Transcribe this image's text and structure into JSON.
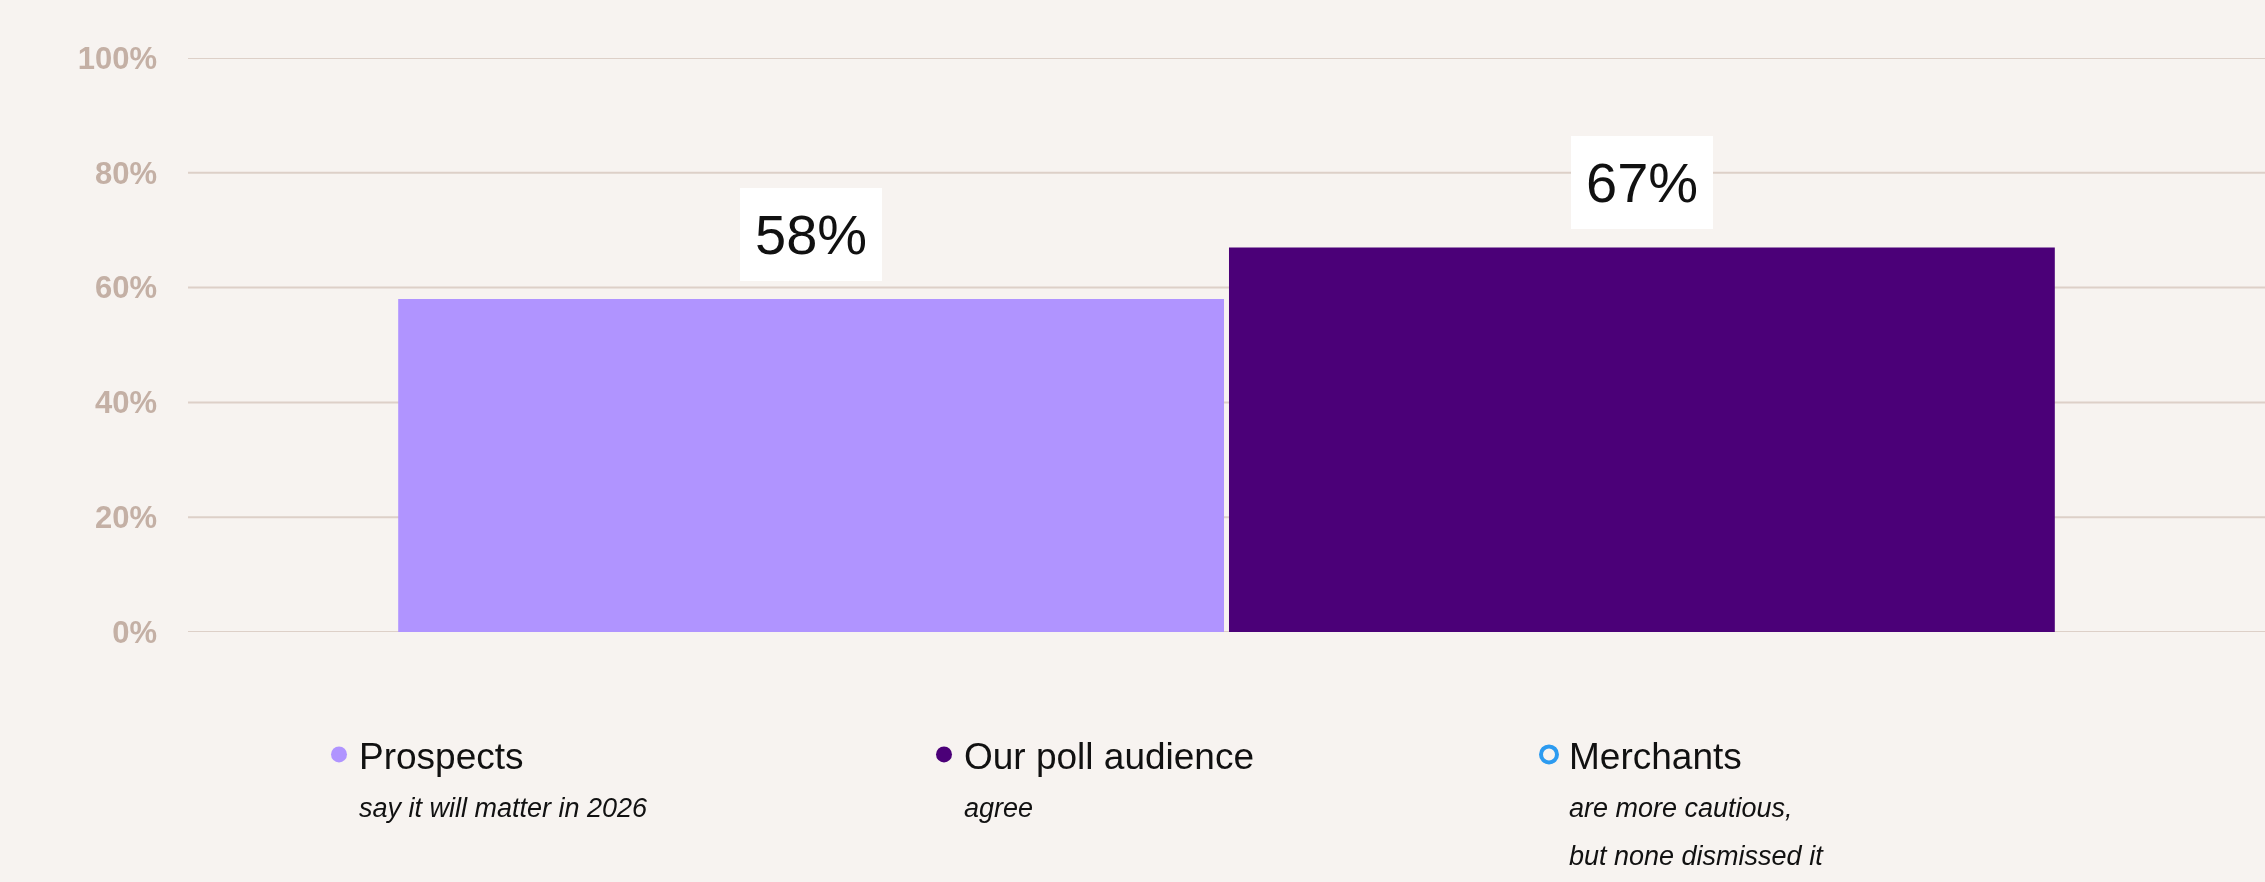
{
  "chart_data": {
    "type": "bar",
    "categories": [
      null
    ],
    "series": [
      {
        "name": "Prospects",
        "color": "#b094ff",
        "values": [
          58
        ],
        "value_labels": [
          "58%"
        ]
      },
      {
        "name": "Our poll audience",
        "color": "#4b0078",
        "values": [
          67
        ],
        "value_labels": [
          "67%"
        ]
      },
      {
        "name": "Merchants",
        "color": "#2d9bf0",
        "values": [
          null
        ]
      }
    ],
    "annotations": [
      "say it will matter in 2026",
      "agree",
      "are more cautious,\nbut none dismissed it"
    ],
    "ylim": [
      0,
      100
    ],
    "yticks": [
      {
        "value": 0,
        "label": "0%"
      },
      {
        "value": 20,
        "label": "20%"
      },
      {
        "value": 40,
        "label": "40%"
      },
      {
        "value": 60,
        "label": "60%"
      },
      {
        "value": 80,
        "label": "80%"
      },
      {
        "value": 100,
        "label": "100%"
      }
    ],
    "grid": "y",
    "legend": "bottom",
    "marker": "circle"
  }
}
